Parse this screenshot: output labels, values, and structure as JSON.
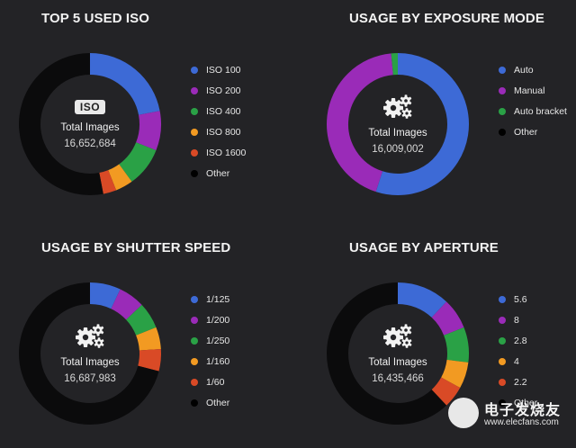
{
  "chart_data": [
    {
      "type": "donut",
      "title": "TOP 5 USED ISO",
      "center_badge": "ISO",
      "center_label": "Total Images",
      "center_value": "16,652,684",
      "categories": [
        "ISO 100",
        "ISO 200",
        "ISO 400",
        "ISO 800",
        "ISO 1600",
        "Other"
      ],
      "colors": [
        "#3d6ad6",
        "#9a2bb8",
        "#2aa146",
        "#f29a22",
        "#d94a26",
        "#0b0b0c"
      ],
      "values": [
        22,
        9,
        9,
        4,
        3,
        53
      ],
      "legend_position": "right"
    },
    {
      "type": "donut",
      "title": "USAGE BY EXPOSURE MODE",
      "center_label": "Total Images",
      "center_value": "16,009,002",
      "categories": [
        "Auto",
        "Manual",
        "Auto bracket",
        "Other"
      ],
      "colors": [
        "#3d6ad6",
        "#9a2bb8",
        "#2aa146",
        "#0b0b0c"
      ],
      "values": [
        55,
        43.5,
        1.5,
        0
      ],
      "legend_position": "right"
    },
    {
      "type": "donut",
      "title": "USAGE BY SHUTTER SPEED",
      "center_label": "Total Images",
      "center_value": "16,687,983",
      "categories": [
        "1/125",
        "1/200",
        "1/250",
        "1/160",
        "1/60",
        "Other"
      ],
      "colors": [
        "#3d6ad6",
        "#9a2bb8",
        "#2aa146",
        "#f29a22",
        "#d94a26",
        "#0b0b0c"
      ],
      "values": [
        7,
        6,
        6,
        5,
        5,
        71
      ],
      "legend_position": "right"
    },
    {
      "type": "donut",
      "title": "USAGE BY APERTURE",
      "center_label": "Total Images",
      "center_value": "16,435,466",
      "categories": [
        "5.6",
        "8",
        "2.8",
        "4",
        "2.2",
        "Other"
      ],
      "colors": [
        "#3d6ad6",
        "#9a2bb8",
        "#2aa146",
        "#f29a22",
        "#d94a26",
        "#0b0b0c"
      ],
      "values": [
        12,
        7,
        8,
        6,
        5,
        62
      ],
      "legend_position": "right"
    }
  ],
  "watermark": {
    "name": "电子发烧友",
    "url": "www.elecfans.com"
  }
}
